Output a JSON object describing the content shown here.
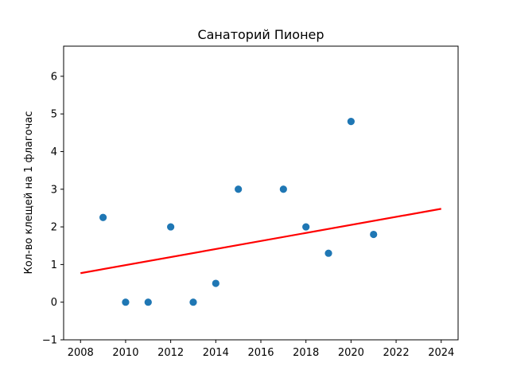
{
  "chart_data": {
    "type": "scatter",
    "title": "Санаторий Пионер",
    "xlabel": "",
    "ylabel": "Кол-во клещей на 1 флагочас",
    "xlim": [
      2007.25,
      2024.75
    ],
    "ylim": [
      -1,
      6.8
    ],
    "xticks": [
      2008,
      2010,
      2012,
      2014,
      2016,
      2018,
      2020,
      2022,
      2024
    ],
    "yticks": [
      -1,
      0,
      1,
      2,
      3,
      4,
      5,
      6
    ],
    "grid": false,
    "series": [
      {
        "type": "scatter",
        "color": "#1f77b4",
        "points": [
          {
            "x": 2009,
            "y": 2.25
          },
          {
            "x": 2010,
            "y": 0
          },
          {
            "x": 2011,
            "y": 0
          },
          {
            "x": 2012,
            "y": 2
          },
          {
            "x": 2013,
            "y": 0
          },
          {
            "x": 2014,
            "y": 0.5
          },
          {
            "x": 2015,
            "y": 3
          },
          {
            "x": 2017,
            "y": 3
          },
          {
            "x": 2018,
            "y": 2
          },
          {
            "x": 2019,
            "y": 1.3
          },
          {
            "x": 2020,
            "y": 4.8
          },
          {
            "x": 2021,
            "y": 1.8
          }
        ]
      },
      {
        "type": "line",
        "color": "#ff0000",
        "points": [
          {
            "x": 2008,
            "y": 0.77
          },
          {
            "x": 2024,
            "y": 2.48
          }
        ]
      }
    ]
  }
}
